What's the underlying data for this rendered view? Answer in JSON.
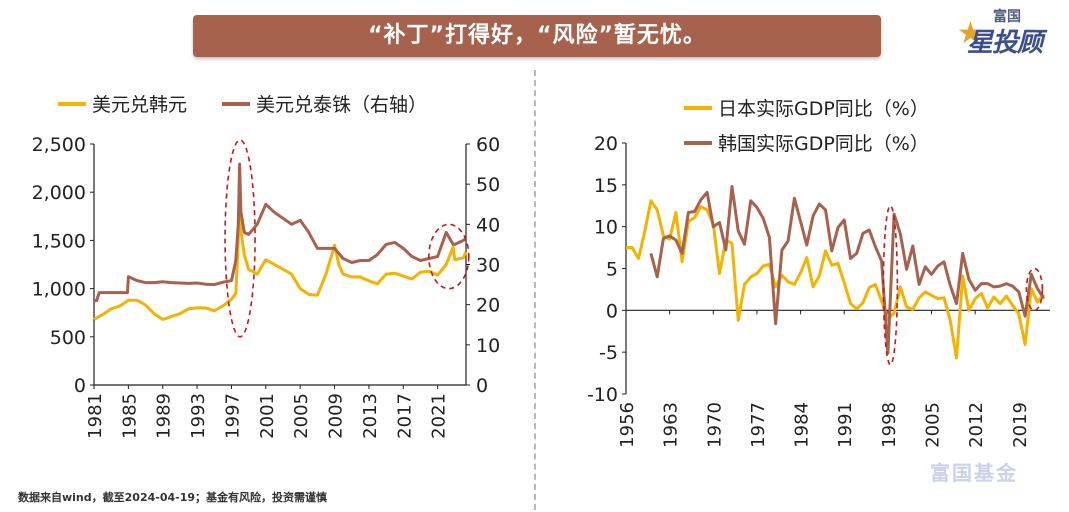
{
  "banner": {
    "title": "“补丁”打得好，“风险”暂无忧。"
  },
  "logo": {
    "top": "富国",
    "main": "星投顾"
  },
  "footnote": "数据来自wind，截至2024-04-19；基金有风险，投资需谨慎",
  "watermark": "富国基金",
  "colors": {
    "yellow": "#f6b200",
    "brown": "#a7624e",
    "axis": "#333333",
    "ellipse": "#c21a1a"
  },
  "chart_data": [
    {
      "type": "line",
      "legend_position": "top",
      "x_ticks": [
        "1981",
        "1985",
        "1989",
        "1993",
        "1997",
        "2001",
        "2005",
        "2009",
        "2013",
        "2017",
        "2021"
      ],
      "xlim": [
        1981,
        2024.3
      ],
      "y_left": {
        "ticks": [
          "0",
          "500",
          "1,000",
          "1,500",
          "2,000",
          "2,500"
        ],
        "lim": [
          0,
          2500
        ]
      },
      "y_right": {
        "ticks": [
          "0",
          "10",
          "20",
          "30",
          "40",
          "50",
          "60"
        ],
        "lim": [
          0,
          60
        ]
      },
      "series": [
        {
          "name": "美元兑韩元",
          "axis": "left",
          "color": "#f6b200",
          "x": [
            1981,
            1982,
            1983,
            1984,
            1985,
            1986,
            1987,
            1988,
            1989,
            1990,
            1991,
            1992,
            1993,
            1994,
            1995,
            1996,
            1997,
            1997.5,
            1997.8,
            1997.95,
            1998.1,
            1998.5,
            1999,
            2000,
            2001,
            2002,
            2003,
            2004,
            2005,
            2006,
            2007,
            2008,
            2008.5,
            2009,
            2009.5,
            2010,
            2011,
            2012,
            2013,
            2014,
            2015,
            2016,
            2017,
            2018,
            2019,
            2020,
            2021,
            2022,
            2022.8,
            2023,
            2024,
            2024.3
          ],
          "y": [
            680,
            730,
            790,
            820,
            880,
            880,
            830,
            740,
            680,
            710,
            740,
            790,
            800,
            800,
            770,
            820,
            890,
            950,
            1500,
            1900,
            1600,
            1350,
            1200,
            1150,
            1300,
            1250,
            1200,
            1150,
            1000,
            940,
            930,
            1150,
            1300,
            1450,
            1250,
            1150,
            1120,
            1120,
            1080,
            1050,
            1150,
            1160,
            1130,
            1100,
            1170,
            1180,
            1140,
            1250,
            1430,
            1300,
            1320,
            1380
          ]
        },
        {
          "name": "美元兑泰铢（右轴）",
          "axis": "right",
          "color": "#a7624e",
          "x": [
            1981,
            1981.3,
            1981.6,
            1982,
            1983,
            1984,
            1984.9,
            1985,
            1986,
            1987,
            1988,
            1989,
            1990,
            1991,
            1992,
            1993,
            1994,
            1995,
            1996,
            1997,
            1997.5,
            1997.8,
            1997.95,
            1998.1,
            1998.5,
            1999,
            2000,
            2001,
            2002,
            2003,
            2004,
            2005,
            2006,
            2007,
            2008,
            2009,
            2010,
            2011,
            2012,
            2013,
            2014,
            2015,
            2016,
            2017,
            2018,
            2019,
            2020,
            2021,
            2022,
            2022.8,
            2023,
            2024,
            2024.3
          ],
          "y": [
            21,
            21,
            23,
            23,
            23,
            23,
            23,
            27,
            26,
            25.5,
            25.5,
            25.7,
            25.5,
            25.4,
            25.3,
            25.4,
            25.1,
            25,
            25.6,
            26,
            31,
            40,
            55,
            43,
            38,
            37.5,
            40,
            45,
            43,
            41.5,
            40,
            41,
            38,
            34,
            34,
            34,
            31.5,
            30.5,
            31,
            31,
            32.5,
            35,
            35.5,
            34,
            32,
            31,
            31.5,
            32,
            38,
            35,
            35,
            36,
            36.5
          ]
        }
      ],
      "annotations": [
        "ellipse-1998",
        "ellipse-2022"
      ]
    },
    {
      "type": "line",
      "legend_position": "top",
      "x_ticks": [
        "1956",
        "1963",
        "1970",
        "1977",
        "1984",
        "1991",
        "1998",
        "2005",
        "2012",
        "2019"
      ],
      "xlim": [
        1956,
        2024
      ],
      "y_left": {
        "ticks": [
          "-10",
          "-5",
          "0",
          "5",
          "10",
          "15",
          "20"
        ],
        "lim": [
          -10,
          20
        ]
      },
      "series": [
        {
          "name": "日本实际GDP同比（%）",
          "color": "#f6b200",
          "x": [
            1956,
            1957,
            1958,
            1959,
            1960,
            1961,
            1962,
            1963,
            1964,
            1965,
            1966,
            1967,
            1968,
            1969,
            1970,
            1971,
            1972,
            1973,
            1974,
            1975,
            1976,
            1977,
            1978,
            1979,
            1980,
            1981,
            1982,
            1983,
            1984,
            1985,
            1986,
            1987,
            1988,
            1989,
            1990,
            1991,
            1992,
            1993,
            1994,
            1995,
            1996,
            1997,
            1998,
            1999,
            2000,
            2001,
            2002,
            2003,
            2004,
            2005,
            2006,
            2007,
            2008,
            2009,
            2010,
            2011,
            2012,
            2013,
            2014,
            2015,
            2016,
            2017,
            2018,
            2019,
            2020,
            2021,
            2022,
            2023
          ],
          "y": [
            7.5,
            7.5,
            6.2,
            9.4,
            13.1,
            12.0,
            8.9,
            8.5,
            11.7,
            5.8,
            10.6,
            11.1,
            12.4,
            12.0,
            10.3,
            4.4,
            8.4,
            8.0,
            -1.2,
            3.1,
            4.0,
            4.4,
            5.3,
            5.5,
            2.8,
            4.2,
            3.4,
            3.1,
            4.5,
            6.3,
            2.8,
            4.1,
            7.1,
            5.4,
            5.6,
            3.3,
            0.8,
            0.2,
            0.9,
            2.7,
            3.1,
            1.1,
            -1.1,
            -0.3,
            2.8,
            0.4,
            0.1,
            1.5,
            2.2,
            1.8,
            1.4,
            1.5,
            -1.2,
            -5.7,
            4.1,
            0.0,
            1.4,
            2.0,
            0.3,
            1.6,
            0.8,
            1.7,
            0.6,
            -0.4,
            -4.1,
            2.6,
            1.0,
            1.9
          ]
        },
        {
          "name": "韩国实际GDP同比（%）",
          "color": "#a7624e",
          "x": [
            1960,
            1961,
            1962,
            1963,
            1964,
            1965,
            1966,
            1967,
            1968,
            1969,
            1970,
            1971,
            1972,
            1973,
            1974,
            1975,
            1976,
            1977,
            1978,
            1979,
            1980,
            1981,
            1982,
            1983,
            1984,
            1985,
            1986,
            1987,
            1988,
            1989,
            1990,
            1991,
            1992,
            1993,
            1994,
            1995,
            1996,
            1997,
            1998,
            1999,
            2000,
            2001,
            2002,
            2003,
            2004,
            2005,
            2006,
            2007,
            2008,
            2009,
            2010,
            2011,
            2012,
            2013,
            2014,
            2015,
            2016,
            2017,
            2018,
            2019,
            2020,
            2021,
            2022,
            2023
          ],
          "y": [
            6.8,
            4.0,
            8.6,
            8.9,
            8.4,
            6.8,
            11.7,
            11.8,
            13.2,
            14.1,
            10.0,
            10.5,
            7.2,
            14.8,
            9.5,
            7.9,
            13.1,
            12.3,
            11.0,
            8.7,
            -1.6,
            7.2,
            8.3,
            13.4,
            10.6,
            7.8,
            11.3,
            12.7,
            12.0,
            7.1,
            9.9,
            10.8,
            6.2,
            6.8,
            9.2,
            9.6,
            7.6,
            5.9,
            -5.1,
            11.5,
            9.1,
            4.9,
            7.7,
            3.1,
            5.2,
            4.3,
            5.3,
            5.8,
            3.0,
            0.8,
            6.8,
            3.7,
            2.4,
            3.2,
            3.2,
            2.8,
            2.9,
            3.2,
            2.9,
            2.2,
            -0.7,
            4.3,
            2.6,
            1.4
          ]
        }
      ],
      "annotations": [
        "ellipse-1998",
        "ellipse-2021"
      ]
    }
  ]
}
